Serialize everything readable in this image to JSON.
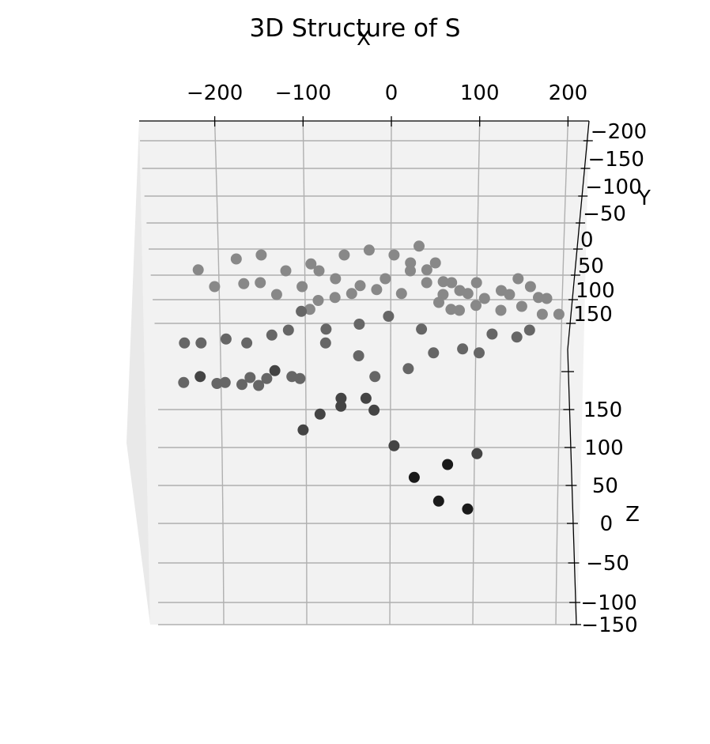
{
  "chart_data": {
    "type": "scatter",
    "projection": "3d",
    "title": "3D Structure of S",
    "xlabel": "X",
    "ylabel": "Y",
    "zlabel": "Z",
    "xticks": [
      -200,
      -100,
      0,
      100,
      200
    ],
    "yticks": [
      -200,
      -150,
      -100,
      -50,
      0,
      50,
      100,
      150
    ],
    "zticks": [
      150,
      100,
      50,
      0,
      -50,
      -100,
      -150
    ],
    "xlim": [
      -290,
      225
    ],
    "ylim": [
      -200,
      175
    ],
    "zlim": [
      -150,
      175
    ],
    "grid": true,
    "marker_colors": [
      "#1a1a1a",
      "#444444",
      "#666666",
      "#888888"
    ],
    "points": [
      [
        -235,
        120,
        135
      ],
      [
        -215,
        105,
        115
      ],
      [
        -180,
        115,
        120
      ],
      [
        -160,
        110,
        120
      ],
      [
        -140,
        95,
        105
      ],
      [
        -210,
        -5,
        -5
      ],
      [
        -180,
        0,
        -5
      ],
      [
        -160,
        5,
        -5
      ],
      [
        -150,
        -5,
        0
      ],
      [
        -120,
        10,
        5
      ],
      [
        -110,
        -5,
        0
      ],
      [
        -250,
        -10,
        -5
      ],
      [
        -230,
        -15,
        0
      ],
      [
        -200,
        -10,
        -5
      ],
      [
        -170,
        -10,
        0
      ],
      [
        -140,
        -20,
        5
      ],
      [
        -250,
        40,
        45
      ],
      [
        -230,
        40,
        45
      ],
      [
        -200,
        45,
        50
      ],
      [
        -175,
        40,
        45
      ],
      [
        -145,
        50,
        55
      ],
      [
        -125,
        50,
        60
      ],
      [
        -105,
        -70,
        -65
      ],
      [
        -85,
        -50,
        -45
      ],
      [
        -60,
        -40,
        -35
      ],
      [
        -30,
        -30,
        -25
      ],
      [
        5,
        -90,
        -85
      ],
      [
        30,
        -130,
        -125
      ],
      [
        60,
        -160,
        -155
      ],
      [
        95,
        -170,
        -165
      ],
      [
        70,
        -120,
        -110
      ],
      [
        105,
        -100,
        -95
      ],
      [
        -90,
        100,
        100
      ],
      [
        -110,
        80,
        85
      ],
      [
        -80,
        70,
        65
      ],
      [
        -40,
        70,
        70
      ],
      [
        -5,
        80,
        80
      ],
      [
        35,
        70,
        65
      ],
      [
        55,
        110,
        100
      ],
      [
        70,
        95,
        90
      ],
      [
        -80,
        40,
        45
      ],
      [
        -40,
        30,
        30
      ],
      [
        -20,
        10,
        5
      ],
      [
        20,
        20,
        15
      ],
      [
        50,
        40,
        35
      ],
      [
        85,
        45,
        40
      ],
      [
        105,
        40,
        35
      ],
      [
        120,
        70,
        60
      ],
      [
        150,
        60,
        55
      ],
      [
        165,
        75,
        65
      ],
      [
        180,
        95,
        85
      ],
      [
        200,
        95,
        85
      ],
      [
        175,
        110,
        105
      ],
      [
        140,
        120,
        110
      ],
      [
        100,
        100,
        95
      ],
      [
        80,
        100,
        90
      ],
      [
        60,
        120,
        110
      ],
      [
        40,
        135,
        125
      ],
      [
        20,
        150,
        140
      ],
      [
        -10,
        140,
        130
      ],
      [
        -40,
        125,
        120
      ],
      [
        -70,
        110,
        105
      ],
      [
        -100,
        95,
        90
      ],
      [
        -110,
        130,
        120
      ],
      [
        -90,
        150,
        140
      ],
      [
        -60,
        170,
        160
      ],
      [
        -30,
        170,
        165
      ],
      [
        0,
        170,
        160
      ],
      [
        20,
        160,
        150
      ],
      [
        40,
        145,
        140
      ],
      [
        60,
        130,
        125
      ],
      [
        80,
        125,
        115
      ],
      [
        100,
        135,
        125
      ],
      [
        130,
        125,
        115
      ],
      [
        150,
        140,
        130
      ],
      [
        165,
        130,
        120
      ],
      [
        185,
        115,
        105
      ],
      [
        155,
        105,
        95
      ],
      [
        130,
        100,
        90
      ],
      [
        110,
        115,
        105
      ],
      [
        90,
        115,
        110
      ],
      [
        70,
        135,
        125
      ],
      [
        50,
        160,
        150
      ],
      [
        30,
        175,
        170
      ],
      [
        10,
        115,
        110
      ],
      [
        -20,
        120,
        115
      ],
      [
        -50,
        115,
        110
      ],
      [
        -70,
        140,
        130
      ],
      [
        -100,
        165,
        150
      ],
      [
        -130,
        150,
        140
      ],
      [
        -160,
        170,
        160
      ],
      [
        -190,
        165,
        155
      ],
      [
        -60,
        -30,
        -25
      ],
      [
        -20,
        -45,
        -40
      ]
    ]
  }
}
